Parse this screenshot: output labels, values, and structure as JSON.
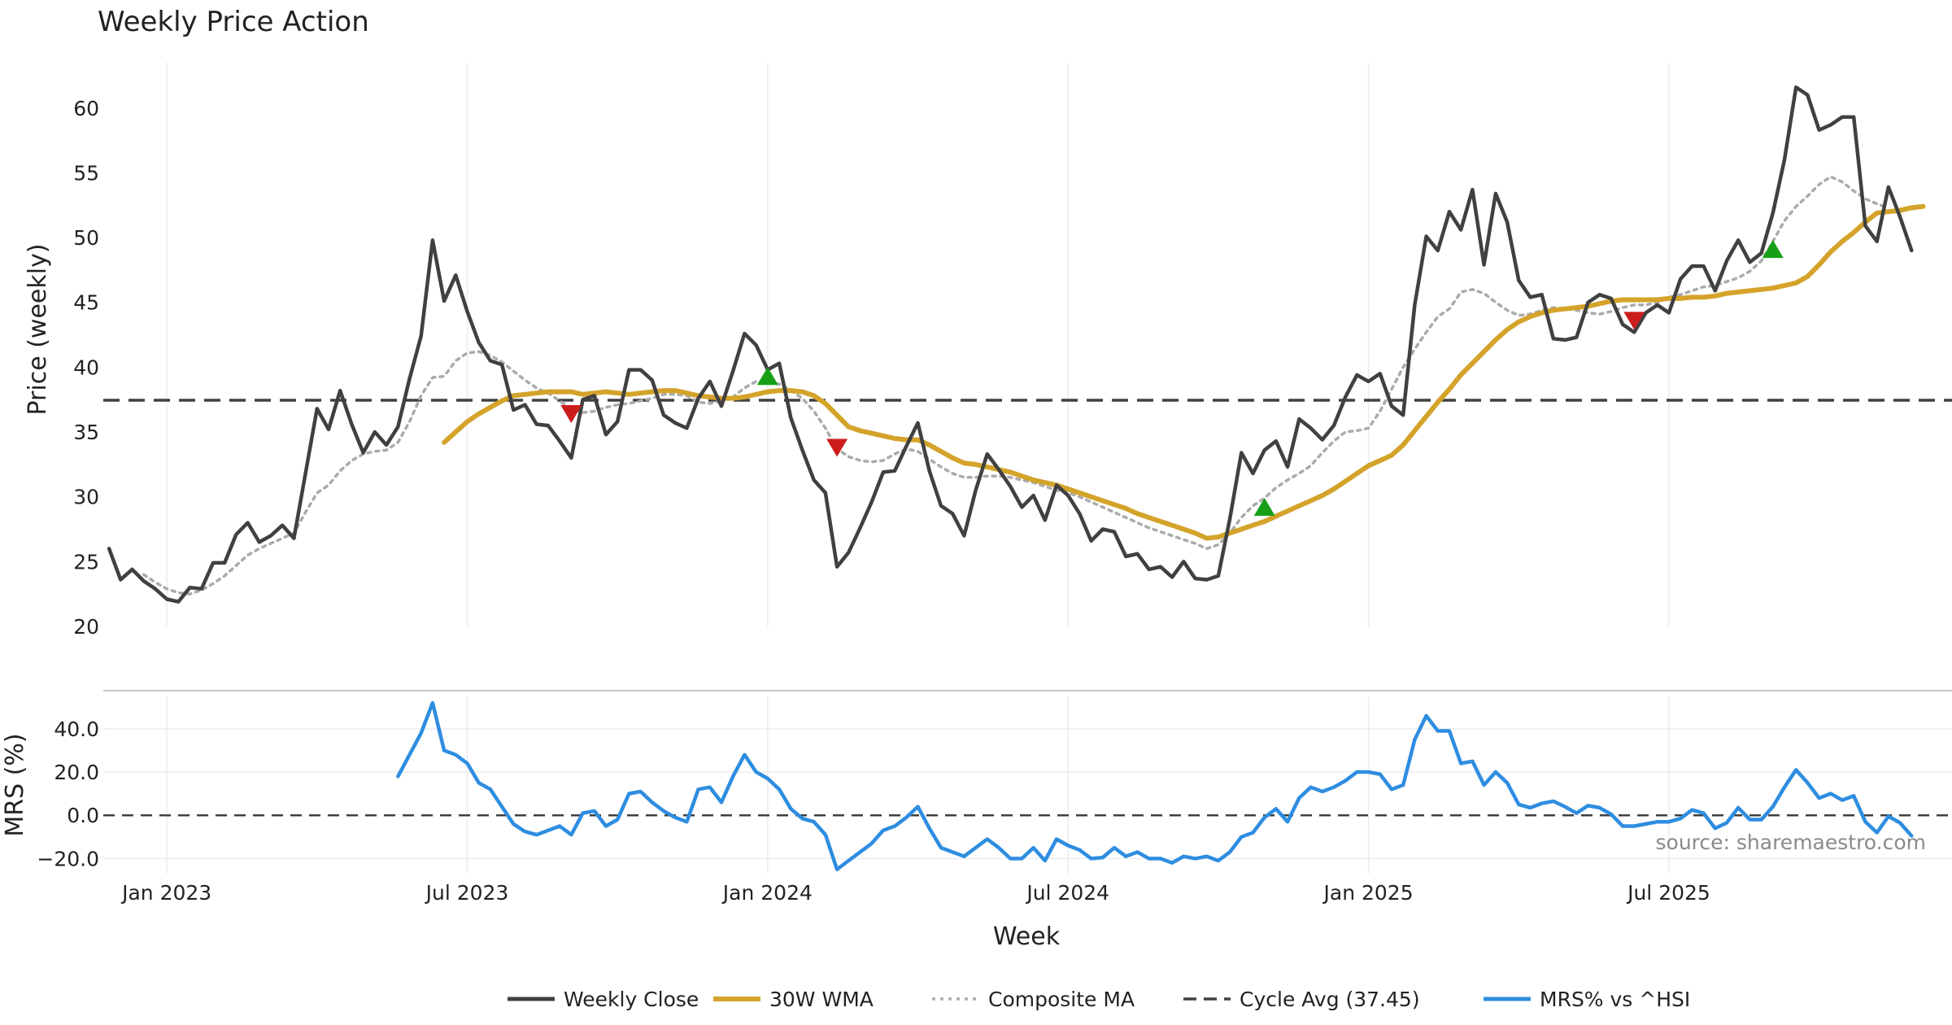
{
  "colors": {
    "close": "#404040",
    "wma": "#d4a32a",
    "composite": "#ababab",
    "cycle": "#404040",
    "mrs": "#2e8de0",
    "buy": "#17a017",
    "sell": "#cc1d1d",
    "grid": "#e9edf1"
  },
  "chart_data": {
    "type": "line",
    "title": "Weekly Price Action",
    "xlabel": "Week",
    "x_ticks": [
      "Jan 2023",
      "Jul 2023",
      "Jan 2024",
      "Jul 2024",
      "Jan 2025",
      "Jul 2025"
    ],
    "x_tick_positions": [
      5,
      31,
      57,
      83,
      109,
      135
    ],
    "week_count": 160,
    "price_panel": {
      "ylabel": "Price (weekly)",
      "ylim": [
        20,
        63.5
      ],
      "yticks": [
        20,
        25,
        30,
        35,
        40,
        45,
        50,
        55,
        60
      ],
      "cycle_avg": 37.45,
      "series": [
        {
          "name": "Weekly Close",
          "start_index": 0,
          "values": [
            26.0,
            23.6,
            24.4,
            23.5,
            22.9,
            22.1,
            21.9,
            23.0,
            22.9,
            24.9,
            24.9,
            27.1,
            28.0,
            26.5,
            27.0,
            27.8,
            26.8,
            31.8,
            36.8,
            35.2,
            38.2,
            35.6,
            33.4,
            35.0,
            34.0,
            35.4,
            39.1,
            42.4,
            49.8,
            45.1,
            47.1,
            44.3,
            41.9,
            40.5,
            40.2,
            36.7,
            37.1,
            35.6,
            35.5,
            34.3,
            33.0,
            37.5,
            37.8,
            34.8,
            35.8,
            39.8,
            39.8,
            39.0,
            36.3,
            35.7,
            35.3,
            37.6,
            38.9,
            37.0,
            39.7,
            42.6,
            41.7,
            39.8,
            40.3,
            36.1,
            33.6,
            31.3,
            30.3,
            24.6,
            25.7,
            27.6,
            29.6,
            31.9,
            32.0,
            33.9,
            35.7,
            32.0,
            29.3,
            28.7,
            27.0,
            30.5,
            33.3,
            32.1,
            30.8,
            29.2,
            30.1,
            28.2,
            30.9,
            30.1,
            28.7,
            26.6,
            27.5,
            27.3,
            25.4,
            25.6,
            24.4,
            24.6,
            23.8,
            25.0,
            23.7,
            23.6,
            23.9,
            28.3,
            33.4,
            31.8,
            33.6,
            34.3,
            32.3,
            36.0,
            35.3,
            34.4,
            35.5,
            37.7,
            39.4,
            38.9,
            39.5,
            37.0,
            36.3,
            44.8,
            50.1,
            49.0,
            52.0,
            50.6,
            53.7,
            47.9,
            53.4,
            51.2,
            46.7,
            45.4,
            45.6,
            42.2,
            42.1,
            42.3,
            45.0,
            45.6,
            45.3,
            43.3,
            42.7,
            44.2,
            44.8,
            44.2,
            46.8,
            47.8,
            47.8,
            45.9,
            48.2,
            49.8,
            48.1,
            48.8,
            51.9,
            56.0,
            61.6,
            61.0,
            58.3,
            58.7,
            59.3,
            59.3,
            50.9,
            49.7,
            53.9,
            51.6,
            49.0
          ]
        },
        {
          "name": "30W WMA",
          "start_index": 29,
          "values": [
            34.2,
            35.0,
            35.8,
            36.4,
            36.9,
            37.4,
            37.8,
            37.9,
            38.0,
            38.1,
            38.1,
            38.1,
            37.9,
            38.0,
            38.1,
            38.0,
            37.9,
            38.0,
            38.1,
            38.2,
            38.2,
            38.0,
            37.8,
            37.7,
            37.6,
            37.6,
            37.7,
            37.9,
            38.1,
            38.2,
            38.2,
            38.1,
            37.8,
            37.2,
            36.3,
            35.4,
            35.1,
            34.9,
            34.7,
            34.5,
            34.4,
            34.4,
            34.0,
            33.5,
            33.0,
            32.6,
            32.5,
            32.3,
            32.1,
            31.9,
            31.6,
            31.3,
            31.1,
            30.9,
            30.6,
            30.3,
            30.0,
            29.7,
            29.4,
            29.1,
            28.7,
            28.4,
            28.1,
            27.8,
            27.5,
            27.2,
            26.8,
            26.9,
            27.2,
            27.5,
            27.8,
            28.1,
            28.5,
            28.9,
            29.3,
            29.7,
            30.1,
            30.6,
            31.2,
            31.8,
            32.4,
            32.8,
            33.2,
            34.0,
            35.1,
            36.2,
            37.3,
            38.3,
            39.4,
            40.3,
            41.2,
            42.1,
            42.9,
            43.5,
            43.9,
            44.2,
            44.4,
            44.5,
            44.6,
            44.7,
            44.9,
            45.1,
            45.2,
            45.2,
            45.2,
            45.2,
            45.3,
            45.3,
            45.4,
            45.4,
            45.5,
            45.7,
            45.8,
            45.9,
            46.0,
            46.1,
            46.3,
            46.5,
            47.0,
            47.9,
            48.9,
            49.7,
            50.4,
            51.2,
            51.9,
            52.0,
            52.1,
            52.3,
            52.4
          ]
        },
        {
          "name": "Composite MA",
          "start_index": 3,
          "values": [
            24.0,
            23.4,
            22.9,
            22.6,
            22.5,
            22.8,
            23.3,
            23.9,
            24.7,
            25.5,
            26.0,
            26.4,
            26.8,
            27.2,
            28.8,
            30.3,
            30.9,
            32.0,
            32.8,
            33.3,
            33.5,
            33.6,
            34.2,
            35.8,
            37.8,
            39.2,
            39.3,
            40.5,
            41.1,
            41.2,
            40.9,
            40.4,
            39.7,
            39.0,
            38.4,
            38.0,
            37.4,
            36.8,
            36.5,
            36.6,
            36.9,
            37.1,
            37.2,
            37.4,
            37.6,
            37.9,
            37.9,
            37.8,
            37.3,
            37.2,
            37.4,
            37.7,
            38.4,
            38.9,
            38.8,
            38.7,
            38.2,
            37.6,
            36.6,
            35.3,
            33.7,
            33.1,
            32.8,
            32.7,
            32.8,
            33.3,
            33.7,
            33.5,
            32.9,
            32.3,
            31.8,
            31.5,
            31.5,
            31.6,
            31.6,
            31.5,
            31.3,
            31.1,
            30.8,
            30.5,
            30.3,
            30.0,
            29.6,
            29.2,
            28.8,
            28.4,
            28.0,
            27.6,
            27.3,
            27.0,
            26.7,
            26.4,
            26.0,
            26.3,
            27.2,
            28.4,
            29.3,
            29.9,
            30.7,
            31.3,
            31.8,
            32.4,
            33.4,
            34.3,
            35.0,
            35.1,
            35.3,
            36.6,
            38.3,
            40.0,
            41.4,
            42.7,
            43.9,
            44.5,
            45.8,
            46.0,
            45.7,
            45.0,
            44.4,
            44.0,
            44.1,
            44.4,
            44.6,
            44.5,
            44.4,
            44.2,
            44.1,
            44.3,
            44.6,
            44.8,
            44.8,
            45.0,
            45.4,
            45.6,
            45.9,
            46.2,
            46.3,
            46.6,
            46.9,
            47.4,
            48.2,
            49.7,
            51.3,
            52.4,
            53.2,
            54.1,
            54.7,
            54.3,
            53.6,
            53.0,
            52.6,
            52.3
          ]
        }
      ],
      "signals": [
        {
          "type": "sell",
          "index": 40,
          "value": 36.5
        },
        {
          "type": "buy",
          "index": 57,
          "value": 39.2
        },
        {
          "type": "sell",
          "index": 63,
          "value": 33.9
        },
        {
          "type": "buy",
          "index": 100,
          "value": 29.1
        },
        {
          "type": "sell",
          "index": 132,
          "value": 43.7
        },
        {
          "type": "buy",
          "index": 144,
          "value": 49.0
        }
      ]
    },
    "mrs_panel": {
      "ylabel": "MRS (%)",
      "ylim": [
        -27,
        55
      ],
      "yticks": [
        -20,
        0,
        20,
        40
      ],
      "ytick_labels": [
        "−20.0",
        "0.0",
        "20.0",
        "40.0"
      ],
      "series": [
        {
          "name": "MRS% vs ^HSI",
          "start_index": 25,
          "values": [
            18.0,
            28.0,
            38.0,
            52.0,
            30.0,
            28.0,
            24.0,
            15.0,
            12.0,
            4.0,
            -4.0,
            -7.5,
            -9.0,
            -7.0,
            -5.0,
            -9.0,
            1.0,
            2.0,
            -5.0,
            -2.0,
            10.0,
            11.0,
            6.0,
            2.0,
            -1.0,
            -3.0,
            12.0,
            13.0,
            6.0,
            18.0,
            28.0,
            20.0,
            17.0,
            12.0,
            3.0,
            -1.5,
            -3.0,
            -9.0,
            -25.0,
            -21.0,
            -17.0,
            -13.0,
            -7.0,
            -5.0,
            -1.0,
            4.0,
            -6.0,
            -15.0,
            -17.0,
            -19.0,
            -15.0,
            -11.0,
            -15.0,
            -20.0,
            -20.0,
            -15.0,
            -21.0,
            -11.0,
            -14.0,
            -16.0,
            -20.0,
            -19.5,
            -15.0,
            -19.0,
            -17.0,
            -20.0,
            -20.0,
            -22.0,
            -19.0,
            -20.0,
            -19.0,
            -21.0,
            -17.0,
            -10.0,
            -8.0,
            -1.0,
            3.0,
            -3.0,
            8.0,
            13.0,
            11.0,
            13.0,
            16.0,
            20.0,
            20.0,
            19.0,
            12.0,
            14.0,
            35.0,
            46.0,
            39.0,
            39.0,
            24.0,
            25.0,
            14.0,
            20.0,
            15.0,
            5.0,
            3.5,
            5.5,
            6.5,
            4.0,
            1.0,
            4.5,
            3.5,
            0.5,
            -5.0,
            -5.0,
            -4.0,
            -3.0,
            -3.0,
            -1.5,
            2.5,
            1.0,
            -6.0,
            -3.5,
            3.5,
            -2.0,
            -2.0,
            4.0,
            13.0,
            21.0,
            15.0,
            8.0,
            10.0,
            7.0,
            9.0,
            -3.0,
            -8.0,
            -0.5,
            -3.5,
            -9.5
          ]
        }
      ],
      "source_note": "source: sharemaestro.com"
    },
    "legend": [
      {
        "label": "Weekly Close",
        "style": "solid",
        "color_key": "close"
      },
      {
        "label": "30W WMA",
        "style": "solid-thick",
        "color_key": "wma"
      },
      {
        "label": "Composite MA",
        "style": "dotted",
        "color_key": "composite"
      },
      {
        "label": "Cycle Avg (37.45)",
        "style": "dashed",
        "color_key": "cycle"
      },
      {
        "label": "MRS% vs ^HSI",
        "style": "solid",
        "color_key": "mrs"
      }
    ],
    "legend_position": "bottom-center"
  }
}
